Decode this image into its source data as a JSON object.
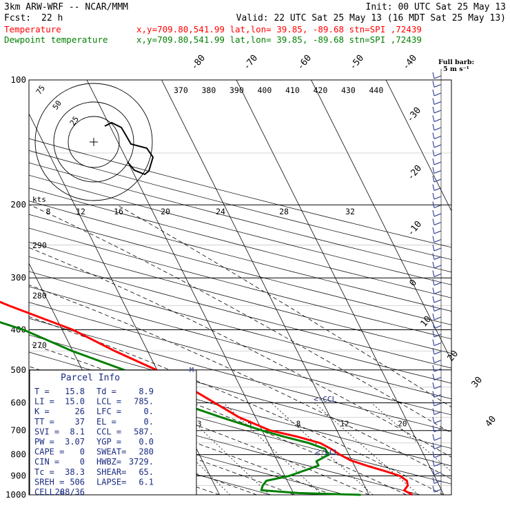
{
  "header": {
    "model": "3km ARW-WRF -- NCAR/MMM",
    "init": "Init: 00 UTC Sat 25 May 13",
    "fcst_label": "Fcst:",
    "fcst_value": "22 h",
    "valid": "Valid: 22 UTC Sat 25 May 13 (16 MDT Sat 25 May 13)",
    "temp_label": "Temperature",
    "dew_label": "Dewpoint temperature",
    "coords": "x,y=709.80,541.99   lat,lon= 39.85, -89.68   stn=SPI ,72439",
    "full_barb": "Full barb:",
    "full_barb_unit": "5 m s⁻¹",
    "kts": "kts",
    "ccl_marker": "<-CCL",
    "lcl_marker": "<-LCL",
    "lfc_marker": "M"
  },
  "colors": {
    "temperature": "#ff0000",
    "dewpoint": "#008000",
    "text": "#000000",
    "parcel": "#1a2a80",
    "barbs": "#2a3a90"
  },
  "chart_data": {
    "type": "line",
    "title": "",
    "ylabel": "",
    "y_scale": "log",
    "y_range": [
      1000,
      100
    ],
    "pressure_ticks": [
      "100",
      "200",
      "300",
      "400",
      "500",
      "600",
      "700",
      "800",
      "900",
      "1000"
    ],
    "isotherm_labels": [
      "-80",
      "-70",
      "-60",
      "-50",
      "-40",
      "-30",
      "-20",
      "-10",
      "0",
      "10",
      "20",
      "30",
      "40"
    ],
    "theta_labels": [
      "370",
      "380",
      "390",
      "400",
      "410",
      "420",
      "430",
      "440"
    ],
    "theta_side_labels": [
      "290",
      "280",
      "270"
    ],
    "hodograph_ring_labels": [
      "75",
      "50",
      "25"
    ],
    "hodograph_speed_labels": [
      "8",
      "12",
      "16",
      "20",
      "24",
      "28",
      "32"
    ],
    "mixing_ratio_labels": [
      "2",
      "3",
      "5",
      "8",
      "12",
      "20"
    ],
    "series": [
      {
        "name": "Temperature",
        "points": [
          [
            1000,
            15.8
          ],
          [
            975,
            15.0
          ],
          [
            950,
            15.8
          ],
          [
            925,
            16.0
          ],
          [
            900,
            15.4
          ],
          [
            875,
            13.6
          ],
          [
            850,
            11.6
          ],
          [
            825,
            9.8
          ],
          [
            800,
            8.8
          ],
          [
            775,
            8.0
          ],
          [
            750,
            6.9
          ],
          [
            725,
            4.4
          ],
          [
            700,
            1.1
          ],
          [
            650,
            -2.2
          ],
          [
            600,
            -4.5
          ],
          [
            550,
            -7.0
          ],
          [
            500,
            -10.1
          ],
          [
            450,
            -14.4
          ],
          [
            400,
            -18.6
          ],
          [
            350,
            -25.5
          ],
          [
            300,
            -32.7
          ],
          [
            250,
            -40.9
          ],
          [
            220,
            -46.7
          ],
          [
            200,
            -53.0
          ],
          [
            190,
            -55.9
          ],
          [
            175,
            -56.1
          ],
          [
            150,
            -56.2
          ],
          [
            125,
            -56.9
          ],
          [
            110,
            -63.5
          ],
          [
            100,
            -67.7
          ]
        ]
      },
      {
        "name": "Dewpoint temperature",
        "points": [
          [
            1000,
            8.9
          ],
          [
            990,
            0.7
          ],
          [
            975,
            -4.1
          ],
          [
            950,
            -3.6
          ],
          [
            925,
            -2.8
          ],
          [
            900,
            0.6
          ],
          [
            850,
            5.2
          ],
          [
            830,
            5.2
          ],
          [
            800,
            7.3
          ],
          [
            775,
            7.2
          ],
          [
            750,
            5.4
          ],
          [
            725,
            2.6
          ],
          [
            700,
            0.0
          ],
          [
            650,
            -4.6
          ],
          [
            600,
            -9.3
          ],
          [
            550,
            -11.3
          ],
          [
            500,
            -14.4
          ],
          [
            450,
            -20.1
          ],
          [
            400,
            -25.2
          ],
          [
            350,
            -33.6
          ],
          [
            300,
            -41.9
          ],
          [
            250,
            -52.7
          ],
          [
            200,
            -63.1
          ],
          [
            175,
            -65.1
          ],
          [
            150,
            -66.9
          ],
          [
            125,
            -68.7
          ],
          [
            110,
            -73.3
          ],
          [
            100,
            -73.7
          ]
        ]
      }
    ]
  },
  "parcel_info": {
    "title": "Parcel Info",
    "rows": [
      {
        "a": "T  =",
        "av": "15.8",
        "b": "Td =",
        "bv": "8.9"
      },
      {
        "a": "LI =",
        "av": "15.0",
        "b": "LCL =",
        "bv": "785."
      },
      {
        "a": "K  =",
        "av": "26",
        "b": "LFC =",
        "bv": "0."
      },
      {
        "a": "TT =",
        "av": "37",
        "b": "EL  =",
        "bv": "0."
      },
      {
        "a": "SVI =",
        "av": "8.1",
        "b": "CCL =",
        "bv": "587."
      },
      {
        "a": "PW =",
        "av": "3.07",
        "b": "YGP =",
        "bv": "0.0"
      },
      {
        "a": "CAPE =",
        "av": "0",
        "b": "SWEAT=",
        "bv": "280"
      },
      {
        "a": "CIN =",
        "av": "0",
        "b": "HWBZ=",
        "bv": "3729."
      },
      {
        "a": "Tc =",
        "av": "38.3",
        "b": "SHEAR=",
        "bv": "65."
      },
      {
        "a": "SREH =",
        "av": "506",
        "b": "LAPSE=",
        "bv": "6.1"
      },
      {
        "a": "CELL =",
        "av": "288/36",
        "b": "",
        "bv": ""
      }
    ]
  }
}
